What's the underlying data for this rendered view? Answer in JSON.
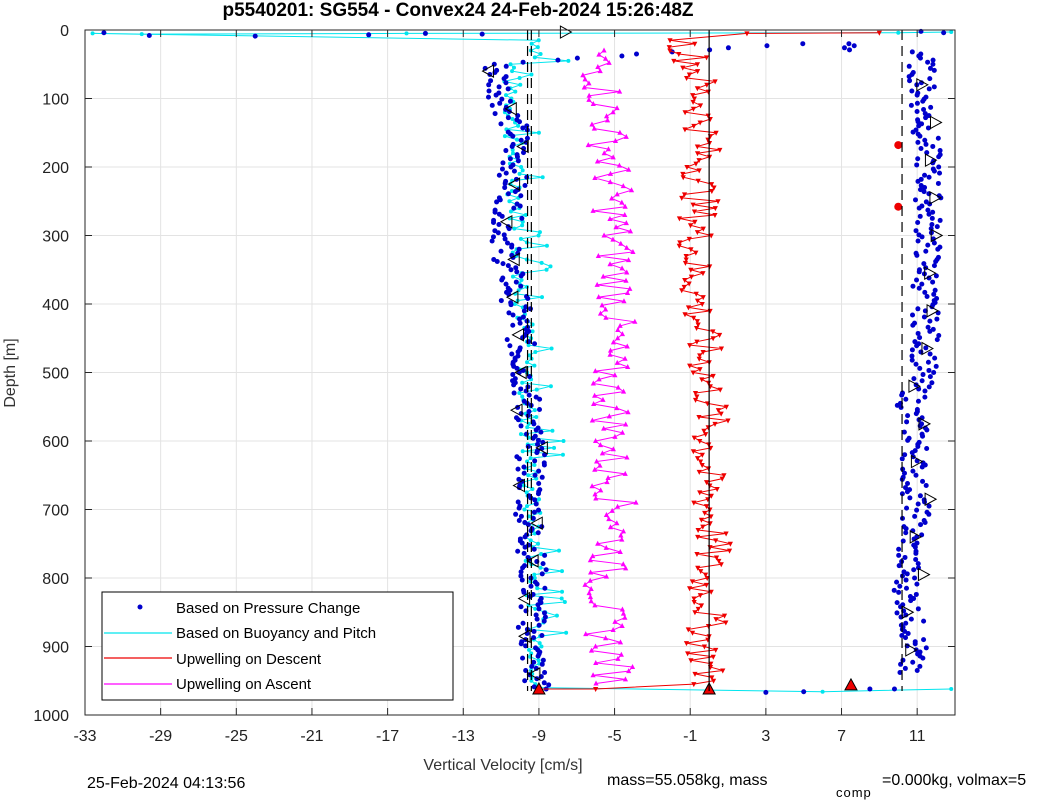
{
  "chart_data": {
    "type": "scatter",
    "title": "p5540201: SG554 - Convex24 24-Feb-2024 15:26:48Z",
    "xlabel": "Vertical Velocity [cm/s]",
    "ylabel": "Depth [m]",
    "xlim": [
      -33,
      13
    ],
    "ylim": [
      0,
      1000
    ],
    "y_reversed": true,
    "grid": true,
    "xticks": [
      -33,
      -29,
      -25,
      -21,
      -17,
      -13,
      -9,
      -5,
      -1,
      3,
      7,
      11
    ],
    "yticks": [
      0,
      100,
      200,
      300,
      400,
      500,
      600,
      700,
      800,
      900,
      1000
    ],
    "legend_position": "bottom-left",
    "series": [
      {
        "name": "Based on Pressure Change",
        "color": "#0000CC",
        "marker": "dot",
        "descent": {
          "x": [
            12.2,
            -11.3,
            -10.9,
            -10.2,
            -10.3,
            -10.5,
            -10.8,
            -10.6,
            -10.2,
            -10.0,
            -9.8,
            -9.4,
            -9.5,
            -9.3,
            -9.4,
            -9.1
          ],
          "y": [
            5,
            50,
            100,
            150,
            200,
            250,
            300,
            350,
            400,
            450,
            500,
            600,
            700,
            800,
            900,
            960
          ]
        },
        "ascent": {
          "x": [
            10.0,
            10.9,
            10.6,
            10.4,
            10.6,
            11.0,
            10.8,
            11.0,
            10.6,
            11.3,
            11.5,
            11.4,
            11.6,
            11.6,
            11.3,
            11.2,
            7.5
          ],
          "y": [
            960,
            900,
            850,
            800,
            750,
            700,
            650,
            600,
            550,
            500,
            450,
            400,
            300,
            200,
            100,
            30,
            958
          ]
        }
      },
      {
        "name": "Based on Buoyancy and Pitch",
        "color": "#00E5EE",
        "marker": "dot",
        "descent": {
          "x": [
            -10.5,
            -10.4,
            -10.3,
            -10.0,
            -9.8,
            -9.6,
            -9.5,
            -9.4,
            -9.2,
            -9.0
          ],
          "y": [
            50,
            100,
            200,
            300,
            400,
            500,
            600,
            700,
            800,
            930
          ]
        }
      },
      {
        "name": "Upwelling on Descent",
        "color": "#EE0000",
        "marker": "triangle-down",
        "x": [
          -1.5,
          -0.6,
          -0.3,
          -0.5,
          -0.8,
          -0.4,
          0.1,
          -0.2,
          0.2,
          -0.3,
          0.0,
          -0.3,
          0.0
        ],
        "y": [
          10,
          60,
          150,
          250,
          350,
          450,
          550,
          650,
          750,
          800,
          850,
          900,
          960
        ]
      },
      {
        "name": "Upwelling on Ascent",
        "color": "#FF00FF",
        "marker": "triangle-up",
        "x": [
          -6.0,
          -5.5,
          -5.2,
          -5.0,
          -4.8,
          -5.4,
          -5.1,
          -5.3,
          -4.7,
          -5.6,
          -5.5,
          -5.0,
          -5.4
        ],
        "y": [
          30,
          100,
          200,
          300,
          400,
          480,
          560,
          640,
          720,
          800,
          880,
          940,
          960
        ]
      }
    ],
    "reference_lines": [
      {
        "name": "descent mean",
        "x": -9.6,
        "color": "#000000",
        "style": "dash"
      },
      {
        "name": "descent mean fit",
        "x": -9.4,
        "color": "#000000",
        "style": "dash"
      },
      {
        "name": "upwelling zero",
        "x": 0.0,
        "color": "#000000",
        "style": "solid"
      },
      {
        "name": "ascent mean",
        "x": 10.2,
        "color": "#000000",
        "style": "dash"
      }
    ]
  },
  "footer": {
    "timestamp": "25-Feb-2024 04:13:56",
    "mass_text": "mass=55.058kg, mass",
    "comp_sub": "comp",
    "comp_text": "=0.000kg, volmax=5"
  }
}
